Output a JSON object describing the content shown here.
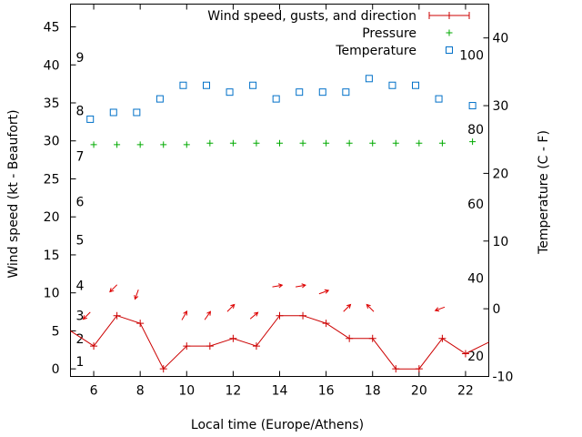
{
  "chart_data": {
    "type": "line",
    "title": "",
    "xlabel": "Local time (Europe/Athens)",
    "ylabel": "Wind speed (kt - Beaufort)",
    "y2label": "Temperature (C - F)",
    "xlim": [
      5,
      23
    ],
    "ylim": [
      -1,
      48
    ],
    "y2lim": [
      -10,
      45
    ],
    "x_ticks": [
      6,
      8,
      10,
      12,
      14,
      16,
      18,
      20,
      22
    ],
    "y_ticks": [
      0,
      5,
      10,
      15,
      20,
      25,
      30,
      35,
      40,
      45
    ],
    "y2_ticks": [
      -10,
      0,
      10,
      20,
      30,
      40
    ],
    "legend_position": "top-right",
    "legend": [
      {
        "label": "Wind speed, gusts, and direction",
        "color": "#cc0000",
        "marker": "plus-line"
      },
      {
        "label": "Pressure",
        "color": "#00aa00",
        "marker": "plus"
      },
      {
        "label": "Temperature",
        "color": "#0070c8",
        "marker": "square"
      }
    ],
    "beaufort_labels": [
      {
        "label": "1",
        "at": 1
      },
      {
        "label": "2",
        "at": 4
      },
      {
        "label": "3",
        "at": 7
      },
      {
        "label": "4",
        "at": 11
      },
      {
        "label": "5",
        "at": 17
      },
      {
        "label": "6",
        "at": 22
      },
      {
        "label": "7",
        "at": 28
      },
      {
        "label": "8",
        "at": 34
      },
      {
        "label": "9",
        "at": 41
      }
    ],
    "fahrenheit_labels": [
      {
        "label": "20",
        "at": -7
      },
      {
        "label": "40",
        "at": 4.5
      },
      {
        "label": "60",
        "at": 15.5
      },
      {
        "label": "80",
        "at": 26.5
      },
      {
        "label": "100",
        "at": 37.5
      }
    ],
    "series": [
      {
        "name": "Wind speed, gusts, and direction",
        "axis": "y",
        "x": [
          5,
          6,
          7,
          8,
          9,
          10,
          11,
          12,
          13,
          14,
          15,
          16,
          17,
          18,
          19,
          20,
          21,
          22,
          23
        ],
        "values": [
          5,
          3,
          7,
          6,
          0,
          3,
          3,
          4,
          3,
          7,
          7,
          6,
          4,
          4,
          0,
          0,
          4,
          2,
          3.5
        ]
      },
      {
        "name": "Pressure",
        "axis": "y",
        "x": [
          6,
          7,
          8,
          9,
          10,
          11,
          12,
          13,
          14,
          15,
          16,
          17,
          18,
          19,
          20,
          21,
          22.3
        ],
        "values": [
          29.5,
          29.5,
          29.5,
          29.5,
          29.5,
          29.7,
          29.7,
          29.7,
          29.7,
          29.7,
          29.7,
          29.7,
          29.7,
          29.7,
          29.7,
          29.7,
          29.9
        ]
      },
      {
        "name": "Temperature",
        "axis": "y2",
        "x": [
          5.85,
          6.85,
          7.85,
          8.85,
          9.85,
          10.85,
          11.85,
          12.85,
          13.85,
          14.85,
          15.85,
          16.85,
          17.85,
          18.85,
          19.85,
          20.85,
          22.3
        ],
        "values": [
          28,
          29,
          29,
          31,
          33,
          33,
          32,
          33,
          31,
          32,
          32,
          32,
          34,
          33,
          33,
          31,
          30
        ]
      }
    ],
    "wind_direction_arrows": [
      {
        "x": 5.7,
        "y": 7,
        "angle_deg": 225
      },
      {
        "x": 6.85,
        "y": 10.6,
        "angle_deg": 225
      },
      {
        "x": 7.85,
        "y": 9.8,
        "angle_deg": 250
      },
      {
        "x": 9.9,
        "y": 7,
        "angle_deg": 60
      },
      {
        "x": 10.9,
        "y": 7,
        "angle_deg": 55
      },
      {
        "x": 11.9,
        "y": 8,
        "angle_deg": 45
      },
      {
        "x": 12.9,
        "y": 7,
        "angle_deg": 40
      },
      {
        "x": 13.9,
        "y": 10.9,
        "angle_deg": 10
      },
      {
        "x": 14.9,
        "y": 10.9,
        "angle_deg": 10
      },
      {
        "x": 15.9,
        "y": 10.1,
        "angle_deg": 20
      },
      {
        "x": 16.9,
        "y": 8,
        "angle_deg": 45
      },
      {
        "x": 17.9,
        "y": 8,
        "angle_deg": 135
      },
      {
        "x": 20.9,
        "y": 7.9,
        "angle_deg": 200
      }
    ],
    "colors": {
      "wind": "#cc0000",
      "arrow": "#dd0000",
      "pressure": "#00aa00",
      "temperature": "#0070c8",
      "axis": "#000000"
    }
  }
}
